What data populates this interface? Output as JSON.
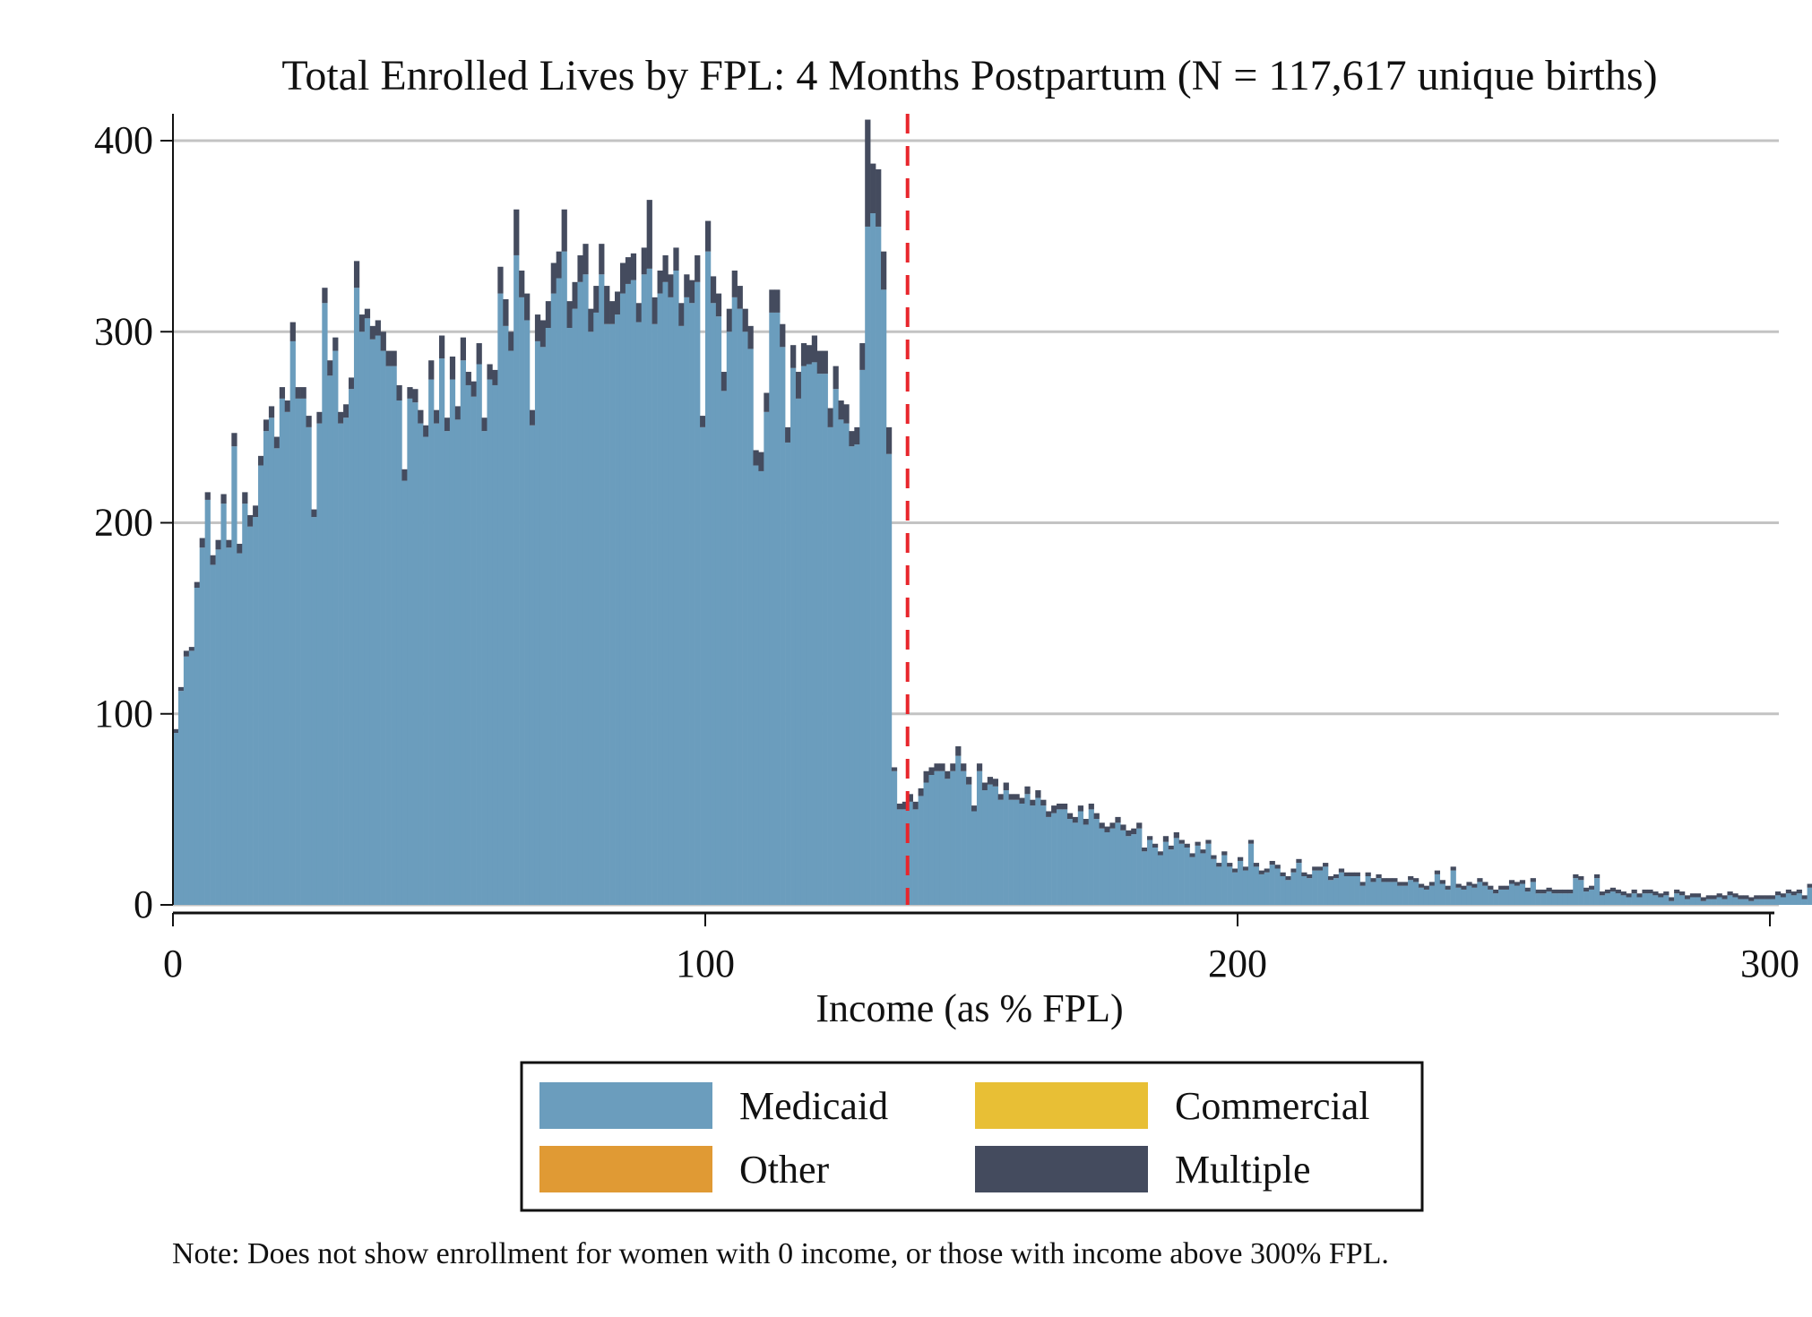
{
  "chart_data": {
    "type": "bar",
    "stacked": true,
    "title": "Total Enrolled Lives by FPL: 4 Months Postpartum (N = 117,617 unique births)",
    "xlabel": "Income (as % FPL)",
    "ylabel": "",
    "xlim": [
      0,
      300
    ],
    "ylim": [
      0,
      400
    ],
    "x_ticks": [
      "0",
      "100",
      "200",
      "300"
    ],
    "y_ticks": [
      "0",
      "100",
      "200",
      "300",
      "400"
    ],
    "bin_width": 1,
    "reference_line_x": 138,
    "reference_line_color": "#e8262c",
    "grid": true,
    "legend_position": "bottom",
    "legend": [
      {
        "name": "Medicaid",
        "color": "#6b9dbd"
      },
      {
        "name": "Commercial",
        "color": "#e8bf35"
      },
      {
        "name": "Other",
        "color": "#e09a34"
      },
      {
        "name": "Multiple",
        "color": "#444b5e"
      }
    ],
    "series": [
      {
        "name": "Medicaid",
        "color": "#6b9dbd",
        "values": [
          90,
          112,
          130,
          133,
          166,
          187,
          212,
          178,
          186,
          210,
          187,
          240,
          184,
          210,
          198,
          203,
          230,
          248,
          255,
          239,
          265,
          258,
          295,
          265,
          265,
          250,
          203,
          252,
          315,
          277,
          290,
          252,
          255,
          270,
          323,
          300,
          307,
          296,
          298,
          290,
          282,
          282,
          264,
          222,
          265,
          263,
          252,
          245,
          275,
          252,
          286,
          248,
          275,
          254,
          285,
          272,
          266,
          283,
          248,
          275,
          272,
          320,
          303,
          290,
          340,
          318,
          306,
          251,
          295,
          292,
          302,
          320,
          328,
          342,
          302,
          312,
          326,
          330,
          300,
          310,
          330,
          304,
          304,
          309,
          320,
          325,
          327,
          305,
          330,
          333,
          304,
          320,
          326,
          318,
          332,
          303,
          318,
          315,
          326,
          250,
          342,
          315,
          308,
          269,
          300,
          318,
          312,
          300,
          291,
          230,
          227,
          258,
          310,
          310,
          292,
          242,
          281,
          265,
          282,
          283,
          284,
          278,
          278,
          250,
          270,
          254,
          252,
          240,
          241,
          280,
          355,
          362,
          355,
          322,
          236,
          70,
          50,
          50,
          54,
          50,
          57,
          64,
          68,
          70,
          70,
          66,
          70,
          78,
          70,
          63,
          49,
          70,
          60,
          63,
          62,
          55,
          60,
          55,
          55,
          53,
          58,
          52,
          56,
          52,
          46,
          48,
          50,
          50,
          45,
          43,
          49,
          42,
          50,
          45,
          40,
          38,
          40,
          43,
          39,
          36,
          37,
          40,
          28,
          34,
          30,
          26,
          33,
          29,
          35,
          32,
          30,
          25,
          31,
          27,
          32,
          24,
          20,
          26,
          20,
          17,
          23,
          18,
          32,
          20,
          16,
          17,
          21,
          19,
          15,
          13,
          17,
          22,
          15,
          14,
          18,
          18,
          20,
          13,
          14,
          17,
          15,
          15,
          15,
          10,
          15,
          12,
          14,
          12,
          12,
          12,
          10,
          10,
          13,
          12,
          9,
          8,
          10,
          16,
          11,
          8,
          18,
          9,
          8,
          10,
          9,
          12,
          10,
          8,
          6,
          8,
          8,
          11,
          10,
          11,
          7,
          12,
          6,
          6,
          7,
          6,
          6,
          6,
          6,
          14,
          13,
          7,
          8,
          14,
          5,
          6,
          7,
          6,
          5,
          4,
          6,
          4,
          6,
          6,
          5,
          4,
          5,
          2,
          6,
          5,
          3,
          4,
          4,
          2,
          3,
          3,
          4,
          3,
          5,
          4,
          3,
          3,
          2,
          3,
          3,
          3,
          3,
          5,
          4,
          6,
          5,
          6,
          3,
          9,
          3,
          3
        ]
      },
      {
        "name": "Commercial",
        "color": "#e8bf35",
        "values": [
          0,
          0,
          0,
          0,
          0,
          0,
          0,
          0,
          0,
          0,
          0,
          0,
          0,
          0,
          0,
          0,
          0,
          0,
          0,
          0,
          0,
          0,
          0,
          0,
          0,
          0,
          0,
          0,
          0,
          0,
          0,
          0,
          0,
          0,
          0,
          0,
          0,
          0,
          0,
          0,
          0,
          0,
          0,
          0,
          0,
          0,
          0,
          0,
          0,
          0,
          0,
          0,
          0,
          0,
          0,
          0,
          0,
          0,
          0,
          0,
          0,
          0,
          0,
          0,
          0,
          0,
          0,
          0,
          0,
          0,
          0,
          0,
          0,
          0,
          0,
          0,
          0,
          0,
          0,
          0,
          0,
          0,
          0,
          0,
          0,
          0,
          0,
          0,
          0,
          0,
          0,
          0,
          0,
          0,
          0,
          0,
          0,
          0,
          0,
          0,
          0,
          0,
          0,
          0,
          0,
          0,
          0,
          0,
          0,
          0,
          0,
          0,
          0,
          0,
          0,
          0,
          0,
          0,
          0,
          0,
          0,
          0,
          0,
          0,
          0,
          0,
          0,
          0,
          0,
          0,
          0,
          0,
          0,
          0,
          0,
          0,
          0,
          0,
          0,
          0,
          0,
          0,
          0,
          0,
          0,
          0,
          0,
          0,
          0,
          0,
          0,
          0,
          0,
          0,
          0,
          0,
          0,
          0,
          0,
          0,
          0,
          0,
          0,
          0,
          0,
          0,
          0,
          0,
          0,
          0,
          0,
          0,
          0,
          0,
          0,
          0,
          0,
          0,
          0,
          0,
          0,
          0,
          0,
          0,
          0,
          0,
          0,
          0,
          0,
          0,
          0,
          0,
          0,
          0,
          0,
          0,
          0,
          0,
          0,
          0,
          0,
          0,
          0,
          0,
          0,
          0,
          0,
          0,
          0,
          0,
          0,
          0,
          0,
          0,
          0,
          0,
          0,
          0,
          0,
          0,
          0,
          0,
          0,
          0,
          0,
          0,
          0,
          0,
          0,
          0,
          0,
          0,
          0,
          0,
          0,
          0,
          0,
          0,
          0,
          0,
          0,
          0,
          0,
          0,
          0,
          0,
          0,
          0,
          0,
          0,
          0,
          0,
          0,
          0,
          0,
          0,
          0,
          0,
          0,
          0,
          0,
          0,
          0,
          0,
          0,
          0,
          0,
          0,
          0,
          0,
          0,
          0,
          0,
          0,
          0,
          0,
          0,
          0,
          0,
          0,
          0,
          0,
          0,
          0,
          0,
          0,
          0,
          0,
          0,
          0,
          0,
          0,
          0,
          0,
          0,
          0,
          0,
          0,
          0,
          0,
          0,
          0,
          0,
          0,
          0
        ]
      },
      {
        "name": "Other",
        "color": "#e09a34",
        "values": [
          0,
          0,
          0,
          0,
          0,
          0,
          0,
          0,
          0,
          0,
          0,
          0,
          0,
          0,
          0,
          0,
          0,
          0,
          0,
          0,
          0,
          0,
          0,
          0,
          0,
          0,
          0,
          0,
          0,
          0,
          0,
          0,
          0,
          0,
          0,
          0,
          0,
          0,
          0,
          0,
          0,
          0,
          0,
          0,
          0,
          0,
          0,
          0,
          0,
          0,
          0,
          0,
          0,
          0,
          0,
          0,
          0,
          0,
          0,
          0,
          0,
          0,
          0,
          0,
          0,
          0,
          0,
          0,
          0,
          0,
          0,
          0,
          0,
          0,
          0,
          0,
          0,
          0,
          0,
          0,
          0,
          0,
          0,
          0,
          0,
          0,
          0,
          0,
          0,
          0,
          0,
          0,
          0,
          0,
          0,
          0,
          0,
          0,
          0,
          0,
          0,
          0,
          0,
          0,
          0,
          0,
          0,
          0,
          0,
          0,
          0,
          0,
          0,
          0,
          0,
          0,
          0,
          0,
          0,
          0,
          0,
          0,
          0,
          0,
          0,
          0,
          0,
          0,
          0,
          0,
          0,
          0,
          0,
          0,
          0,
          0,
          0,
          0,
          0,
          0,
          0,
          0,
          0,
          0,
          0,
          0,
          0,
          0,
          0,
          0,
          0,
          0,
          0,
          0,
          0,
          0,
          0,
          0,
          0,
          0,
          0,
          0,
          0,
          0,
          0,
          0,
          0,
          0,
          0,
          0,
          0,
          0,
          0,
          0,
          0,
          0,
          0,
          0,
          0,
          0,
          0,
          0,
          0,
          0,
          0,
          0,
          0,
          0,
          0,
          0,
          0,
          0,
          0,
          0,
          0,
          0,
          0,
          0,
          0,
          0,
          0,
          0,
          0,
          0,
          0,
          0,
          0,
          0,
          0,
          0,
          0,
          0,
          0,
          0,
          0,
          0,
          0,
          0,
          0,
          0,
          0,
          0,
          0,
          0,
          0,
          0,
          0,
          0,
          0,
          0,
          0,
          0,
          0,
          0,
          0,
          0,
          0,
          0,
          0,
          0,
          0,
          0,
          0,
          0,
          0,
          0,
          0,
          0,
          0,
          0,
          0,
          0,
          0,
          0,
          0,
          0,
          0,
          0,
          0,
          0,
          0,
          0,
          0,
          0,
          0,
          0,
          0,
          0,
          0,
          0,
          0,
          0,
          0,
          0,
          0,
          0,
          0,
          0,
          0,
          0,
          0,
          0,
          0,
          0,
          0,
          0,
          0,
          0,
          0,
          0,
          0,
          0,
          0,
          0,
          0,
          0,
          0,
          0,
          0,
          0,
          0,
          0,
          0,
          0,
          0
        ]
      },
      {
        "name": "Multiple",
        "color": "#444b5e",
        "values": [
          2,
          2,
          3,
          2,
          3,
          5,
          4,
          5,
          5,
          5,
          4,
          7,
          5,
          6,
          6,
          6,
          5,
          6,
          6,
          6,
          6,
          6,
          10,
          6,
          6,
          6,
          4,
          6,
          8,
          8,
          7,
          6,
          7,
          6,
          14,
          9,
          5,
          7,
          8,
          10,
          8,
          8,
          8,
          6,
          6,
          7,
          7,
          6,
          10,
          7,
          12,
          7,
          12,
          7,
          12,
          7,
          8,
          11,
          7,
          8,
          8,
          14,
          14,
          10,
          24,
          14,
          14,
          8,
          14,
          14,
          14,
          16,
          14,
          22,
          14,
          14,
          14,
          16,
          12,
          14,
          16,
          20,
          12,
          12,
          16,
          14,
          14,
          10,
          14,
          36,
          14,
          12,
          14,
          12,
          12,
          12,
          12,
          12,
          14,
          6,
          16,
          14,
          12,
          10,
          12,
          14,
          12,
          12,
          12,
          8,
          10,
          10,
          12,
          12,
          12,
          8,
          12,
          14,
          12,
          10,
          14,
          12,
          12,
          10,
          12,
          10,
          10,
          8,
          9,
          14,
          56,
          26,
          30,
          20,
          14,
          2,
          3,
          4,
          4,
          4,
          4,
          6,
          4,
          4,
          4,
          4,
          4,
          5,
          4,
          4,
          3,
          4,
          4,
          4,
          4,
          3,
          4,
          3,
          3,
          3,
          4,
          3,
          4,
          3,
          3,
          4,
          3,
          3,
          3,
          3,
          3,
          3,
          3,
          3,
          3,
          3,
          3,
          3,
          3,
          3,
          3,
          3,
          2,
          2,
          2,
          2,
          3,
          2,
          3,
          2,
          2,
          2,
          2,
          2,
          2,
          2,
          2,
          2,
          2,
          2,
          2,
          2,
          2,
          2,
          2,
          2,
          2,
          2,
          2,
          2,
          2,
          2,
          2,
          2,
          2,
          2,
          2,
          2,
          2,
          2,
          2,
          2,
          2,
          2,
          2,
          2,
          2,
          2,
          2,
          2,
          2,
          2,
          2,
          2,
          2,
          2,
          2,
          2,
          2,
          2,
          2,
          2,
          2,
          2,
          2,
          2,
          2,
          2,
          2,
          2,
          2,
          2,
          2,
          2,
          2,
          2,
          2,
          2,
          2,
          2,
          2,
          2,
          2,
          2,
          2,
          2,
          2,
          2,
          2,
          2,
          2,
          2,
          2,
          2,
          2,
          2,
          2,
          2,
          2,
          2,
          2,
          2,
          2,
          2,
          2,
          2,
          2,
          2,
          2,
          2,
          2,
          2,
          2,
          2,
          2,
          2,
          2,
          2,
          2,
          2,
          2,
          2,
          2,
          2,
          2,
          2,
          2,
          2,
          2,
          2,
          2,
          2,
          2,
          2,
          2,
          2,
          2,
          2,
          2,
          2,
          2
        ]
      }
    ],
    "note": "Note: Does not show enrollment for women with 0 income, or those with income above 300% FPL."
  }
}
